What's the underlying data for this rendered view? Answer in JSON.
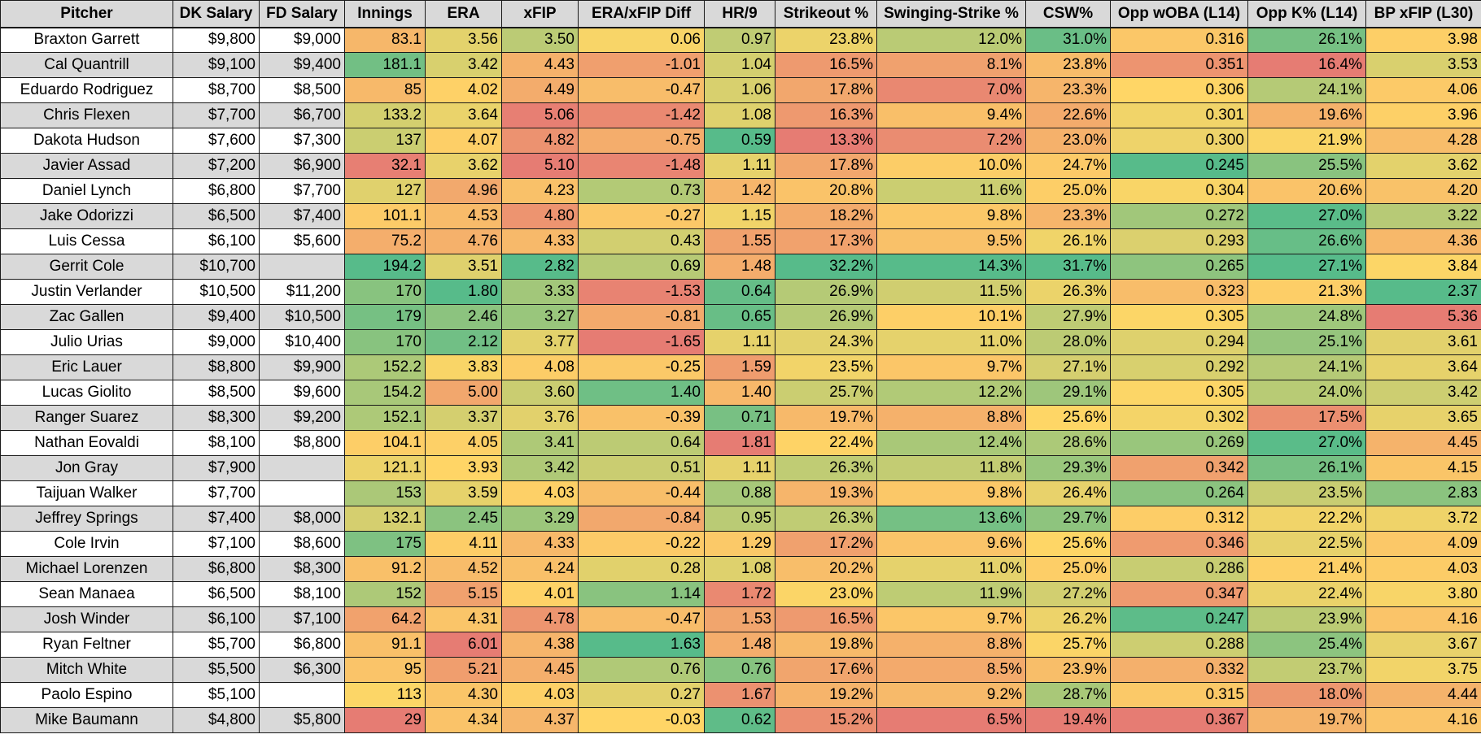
{
  "columns": [
    "Pitcher",
    "DK Salary",
    "FD Salary",
    "Innings",
    "ERA",
    "xFIP",
    "ERA/xFIP Diff",
    "HR/9",
    "Strikeout %",
    "Swinging-Strike %",
    "CSW%",
    "Opp wOBA (L14)",
    "Opp K% (L14)",
    "BP xFIP (L30)"
  ],
  "column_directions": [
    0,
    0,
    0,
    1,
    -1,
    -1,
    1,
    -1,
    1,
    1,
    1,
    -1,
    1,
    -1
  ],
  "scale_colors": {
    "low": "#e67c73",
    "mid": "#ffd666",
    "high": "#57bb8a"
  },
  "rows": [
    [
      "Braxton Garrett",
      "$9,800",
      "$9,000",
      "83.1",
      "3.56",
      "3.50",
      "0.06",
      "0.97",
      "23.8%",
      "12.0%",
      "31.0%",
      "0.316",
      "26.1%",
      "3.98"
    ],
    [
      "Cal Quantrill",
      "$9,100",
      "$9,400",
      "181.1",
      "3.42",
      "4.43",
      "-1.01",
      "1.04",
      "16.5%",
      "8.1%",
      "23.8%",
      "0.351",
      "16.4%",
      "3.53"
    ],
    [
      "Eduardo Rodriguez",
      "$8,700",
      "$8,500",
      "85",
      "4.02",
      "4.49",
      "-0.47",
      "1.06",
      "17.8%",
      "7.0%",
      "23.3%",
      "0.306",
      "24.1%",
      "4.06"
    ],
    [
      "Chris Flexen",
      "$7,700",
      "$6,700",
      "133.2",
      "3.64",
      "5.06",
      "-1.42",
      "1.08",
      "16.3%",
      "9.4%",
      "22.6%",
      "0.301",
      "19.6%",
      "3.96"
    ],
    [
      "Dakota Hudson",
      "$7,600",
      "$7,300",
      "137",
      "4.07",
      "4.82",
      "-0.75",
      "0.59",
      "13.3%",
      "7.2%",
      "23.0%",
      "0.300",
      "21.9%",
      "4.28"
    ],
    [
      "Javier Assad",
      "$7,200",
      "$6,900",
      "32.1",
      "3.62",
      "5.10",
      "-1.48",
      "1.11",
      "17.8%",
      "10.0%",
      "24.7%",
      "0.245",
      "25.5%",
      "3.62"
    ],
    [
      "Daniel Lynch",
      "$6,800",
      "$7,700",
      "127",
      "4.96",
      "4.23",
      "0.73",
      "1.42",
      "20.8%",
      "11.6%",
      "25.0%",
      "0.304",
      "20.6%",
      "4.20"
    ],
    [
      "Jake Odorizzi",
      "$6,500",
      "$7,400",
      "101.1",
      "4.53",
      "4.80",
      "-0.27",
      "1.15",
      "18.2%",
      "9.8%",
      "23.3%",
      "0.272",
      "27.0%",
      "3.22"
    ],
    [
      "Luis Cessa",
      "$6,100",
      "$5,600",
      "75.2",
      "4.76",
      "4.33",
      "0.43",
      "1.55",
      "17.3%",
      "9.5%",
      "26.1%",
      "0.293",
      "26.6%",
      "4.36"
    ],
    [
      "Gerrit Cole",
      "$10,700",
      "",
      "194.2",
      "3.51",
      "2.82",
      "0.69",
      "1.48",
      "32.2%",
      "14.3%",
      "31.7%",
      "0.265",
      "27.1%",
      "3.84"
    ],
    [
      "Justin Verlander",
      "$10,500",
      "$11,200",
      "170",
      "1.80",
      "3.33",
      "-1.53",
      "0.64",
      "26.9%",
      "11.5%",
      "26.3%",
      "0.323",
      "21.3%",
      "2.37"
    ],
    [
      "Zac Gallen",
      "$9,400",
      "$10,500",
      "179",
      "2.46",
      "3.27",
      "-0.81",
      "0.65",
      "26.9%",
      "10.1%",
      "27.9%",
      "0.305",
      "24.8%",
      "5.36"
    ],
    [
      "Julio Urias",
      "$9,000",
      "$10,400",
      "170",
      "2.12",
      "3.77",
      "-1.65",
      "1.11",
      "24.3%",
      "11.0%",
      "28.0%",
      "0.294",
      "25.1%",
      "3.61"
    ],
    [
      "Eric Lauer",
      "$8,800",
      "$9,900",
      "152.2",
      "3.83",
      "4.08",
      "-0.25",
      "1.59",
      "23.5%",
      "9.7%",
      "27.1%",
      "0.292",
      "24.1%",
      "3.64"
    ],
    [
      "Lucas Giolito",
      "$8,500",
      "$9,600",
      "154.2",
      "5.00",
      "3.60",
      "1.40",
      "1.40",
      "25.7%",
      "12.2%",
      "29.1%",
      "0.305",
      "24.0%",
      "3.42"
    ],
    [
      "Ranger Suarez",
      "$8,300",
      "$9,200",
      "152.1",
      "3.37",
      "3.76",
      "-0.39",
      "0.71",
      "19.7%",
      "8.8%",
      "25.6%",
      "0.302",
      "17.5%",
      "3.65"
    ],
    [
      "Nathan Eovaldi",
      "$8,100",
      "$8,800",
      "104.1",
      "4.05",
      "3.41",
      "0.64",
      "1.81",
      "22.4%",
      "12.4%",
      "28.6%",
      "0.269",
      "27.0%",
      "4.45"
    ],
    [
      "Jon Gray",
      "$7,900",
      "",
      "121.1",
      "3.93",
      "3.42",
      "0.51",
      "1.11",
      "26.3%",
      "11.8%",
      "29.3%",
      "0.342",
      "26.1%",
      "4.15"
    ],
    [
      "Taijuan Walker",
      "$7,700",
      "",
      "153",
      "3.59",
      "4.03",
      "-0.44",
      "0.88",
      "19.3%",
      "9.8%",
      "26.4%",
      "0.264",
      "23.5%",
      "2.83"
    ],
    [
      "Jeffrey Springs",
      "$7,400",
      "$8,000",
      "132.1",
      "2.45",
      "3.29",
      "-0.84",
      "0.95",
      "26.3%",
      "13.6%",
      "29.7%",
      "0.312",
      "22.2%",
      "3.72"
    ],
    [
      "Cole Irvin",
      "$7,100",
      "$8,600",
      "175",
      "4.11",
      "4.33",
      "-0.22",
      "1.29",
      "17.2%",
      "9.6%",
      "25.6%",
      "0.346",
      "22.5%",
      "4.09"
    ],
    [
      "Michael Lorenzen",
      "$6,800",
      "$8,300",
      "91.2",
      "4.52",
      "4.24",
      "0.28",
      "1.08",
      "20.2%",
      "11.0%",
      "25.0%",
      "0.286",
      "21.4%",
      "4.03"
    ],
    [
      "Sean Manaea",
      "$6,500",
      "$8,100",
      "152",
      "5.15",
      "4.01",
      "1.14",
      "1.72",
      "23.0%",
      "11.9%",
      "27.2%",
      "0.347",
      "22.4%",
      "3.80"
    ],
    [
      "Josh Winder",
      "$6,100",
      "$7,100",
      "64.2",
      "4.31",
      "4.78",
      "-0.47",
      "1.53",
      "16.5%",
      "9.7%",
      "26.2%",
      "0.247",
      "23.9%",
      "4.16"
    ],
    [
      "Ryan Feltner",
      "$5,700",
      "$6,800",
      "91.1",
      "6.01",
      "4.38",
      "1.63",
      "1.48",
      "19.8%",
      "8.8%",
      "25.7%",
      "0.288",
      "25.4%",
      "3.67"
    ],
    [
      "Mitch White",
      "$5,500",
      "$6,300",
      "95",
      "5.21",
      "4.45",
      "0.76",
      "0.76",
      "17.6%",
      "8.5%",
      "23.9%",
      "0.332",
      "23.7%",
      "3.75"
    ],
    [
      "Paolo Espino",
      "$5,100",
      "",
      "113",
      "4.30",
      "4.03",
      "0.27",
      "1.67",
      "19.2%",
      "9.2%",
      "28.7%",
      "0.315",
      "18.0%",
      "4.44"
    ],
    [
      "Mike Baumann",
      "$4,800",
      "$5,800",
      "29",
      "4.34",
      "4.37",
      "-0.03",
      "0.62",
      "15.2%",
      "6.5%",
      "19.4%",
      "0.367",
      "19.7%",
      "4.16"
    ]
  ]
}
